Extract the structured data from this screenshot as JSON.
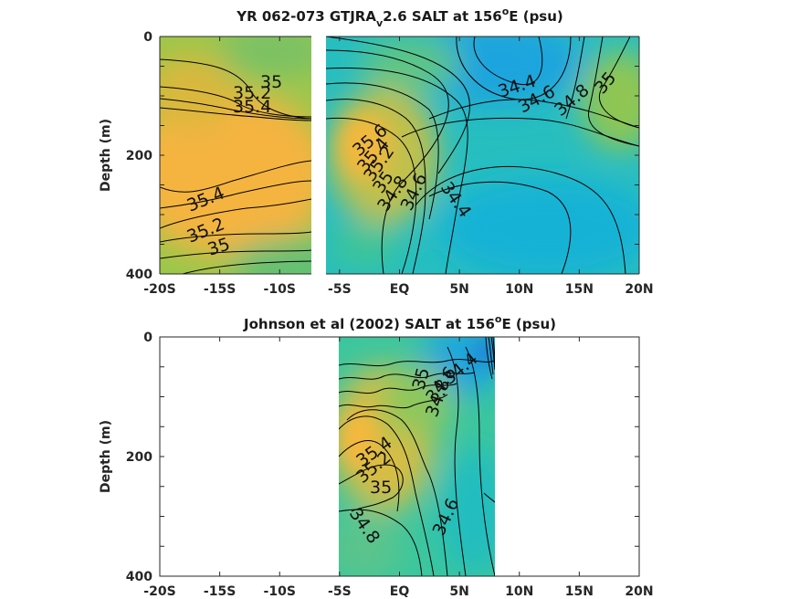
{
  "chart_data": [
    {
      "type": "contour",
      "title": "YR 062-073 GTJRA",
      "title_sub": "v",
      "title_rest": "2.6 SALT at 156",
      "title_sup": "o",
      "title_end": "E (psu)",
      "ylabel": "Depth (m)",
      "xlim": [
        -20,
        20
      ],
      "ylim": [
        400,
        0
      ],
      "x_ticks": [
        -20,
        -15,
        -10,
        -5,
        0,
        5,
        10,
        15,
        20
      ],
      "x_tick_labels": [
        "-20S",
        "-15S",
        "-10S",
        "-5S",
        "EQ",
        "5N",
        "10N",
        "15N",
        "20N"
      ],
      "y_ticks": [
        0,
        200,
        400
      ],
      "y_tick_labels": [
        "0",
        "200",
        "400"
      ],
      "gap_x": [
        -7,
        -6.2
      ],
      "contour_labels": [
        {
          "text": "35",
          "lat": -11.5,
          "depth": 90
        },
        {
          "text": "35.2",
          "lat": -12,
          "depth": 110
        },
        {
          "text": "35.4",
          "lat": -12,
          "depth": 135
        },
        {
          "text": "35.4",
          "lat": -17.8,
          "depth": 270
        },
        {
          "text": "35.2",
          "lat": -17.8,
          "depth": 320
        },
        {
          "text": "35",
          "lat": -16.2,
          "depth": 355
        },
        {
          "text": "35.6",
          "lat": -2.5,
          "depth": 185
        },
        {
          "text": "35.4",
          "lat": -2.3,
          "depth": 215
        },
        {
          "text": "35.2",
          "lat": -2,
          "depth": 235
        },
        {
          "text": "35",
          "lat": -1.5,
          "depth": 255
        },
        {
          "text": "34.8",
          "lat": -0.8,
          "depth": 280
        },
        {
          "text": "34.6",
          "lat": 0.8,
          "depth": 275
        },
        {
          "text": "34.4",
          "lat": 5,
          "depth": 270
        },
        {
          "text": "34.4",
          "lat": 10,
          "depth": 90
        },
        {
          "text": "34.6",
          "lat": 12,
          "depth": 115
        },
        {
          "text": "34.8",
          "lat": 14.5,
          "depth": 115
        },
        {
          "text": "35",
          "lat": 17.8,
          "depth": 90
        }
      ]
    },
    {
      "type": "contour",
      "title": "Johnson et al (2002) SALT at 156",
      "title_sup": "o",
      "title_end": "E (psu)",
      "ylabel": "Depth (m)",
      "xlim": [
        -20,
        20
      ],
      "ylim": [
        400,
        0
      ],
      "data_xrange": [
        -5,
        8
      ],
      "x_ticks": [
        -20,
        -15,
        -10,
        -5,
        0,
        5,
        10,
        15,
        20
      ],
      "x_tick_labels": [
        "-20S",
        "-15S",
        "-10S",
        "-5S",
        "EQ",
        "5N",
        "10N",
        "15N",
        "20N"
      ],
      "y_ticks": [
        0,
        200,
        400
      ],
      "y_tick_labels": [
        "0",
        "200",
        "400"
      ],
      "contour_labels": [
        {
          "text": "34.4",
          "lat": 5.2,
          "depth": 60
        },
        {
          "text": "34.6",
          "lat": 3.6,
          "depth": 90
        },
        {
          "text": "34.8",
          "lat": 3.6,
          "depth": 110
        },
        {
          "text": "35",
          "lat": 2.5,
          "depth": 75
        },
        {
          "text": "35.4",
          "lat": -2.3,
          "depth": 215
        },
        {
          "text": "35.2",
          "lat": -2.6,
          "depth": 235
        },
        {
          "text": "35",
          "lat": -1.4,
          "depth": 255
        },
        {
          "text": "34.6",
          "lat": 4.5,
          "depth": 300
        },
        {
          "text": "34.8",
          "lat": -3.3,
          "depth": 320
        }
      ]
    }
  ],
  "colors": {
    "fresh": "#1f9ee3",
    "mid": "#20b7c6",
    "teal": "#3cc59a",
    "green": "#9cc74b",
    "salty": "#f6b83d"
  }
}
